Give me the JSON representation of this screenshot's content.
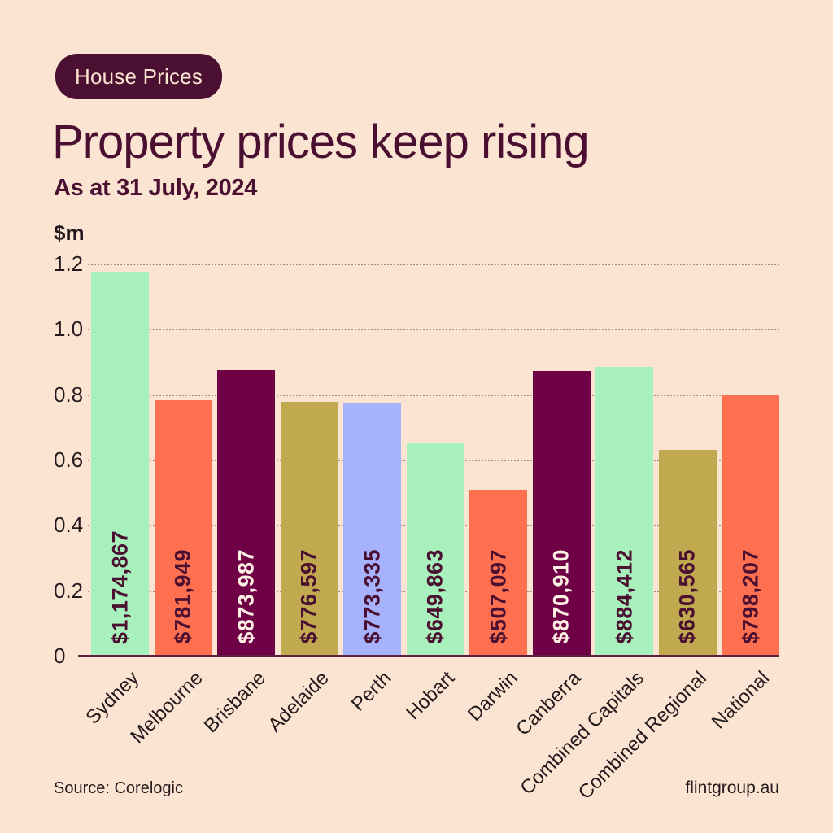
{
  "badge": {
    "label": "House Prices"
  },
  "header": {
    "title": "Property prices keep rising",
    "subtitle": "As at 31 July, 2024"
  },
  "footer": {
    "source": "Source: Corelogic",
    "brand": "flintgroup.au"
  },
  "palette": {
    "background": "#fce4d2",
    "plum_dark": "#4a0f31",
    "plum_bar": "#6f0046",
    "green": "#a9f1bc",
    "coral": "#fe7050",
    "olive": "#c1a94f",
    "lavender": "#a6b3fc",
    "ink": "#241a1d",
    "cream": "#fdf0e3",
    "axis": "#5c2143"
  },
  "chart_data": {
    "type": "bar",
    "title": "Property prices keep rising",
    "subtitle": "As at 31 July, 2024",
    "ylabel": "$m",
    "ylim": [
      0,
      1.2
    ],
    "yticks": [
      0,
      0.2,
      0.4,
      0.6,
      0.8,
      1.0,
      1.2
    ],
    "ytick_labels": [
      "0",
      "0.2",
      "0.4",
      "0.6",
      "0.8",
      "1.0",
      "1.2"
    ],
    "grid": "horizontal dotted",
    "legend": "none",
    "categories": [
      "Sydney",
      "Melbourne",
      "Brisbane",
      "Adelaide",
      "Perth",
      "Hobart",
      "Darwin",
      "Canberra",
      "Combined Capitals",
      "Combined Regional",
      "National"
    ],
    "values_millions": [
      1.174867,
      0.781949,
      0.873987,
      0.776597,
      0.773335,
      0.649863,
      0.507097,
      0.87091,
      0.884412,
      0.630565,
      0.798207
    ],
    "value_labels": [
      "$1,174,867",
      "$781,949",
      "$873,987",
      "$776,597",
      "$773,335",
      "$649,863",
      "$507,097",
      "$870,910",
      "$884,412",
      "$630,565",
      "$798,207"
    ],
    "bar_color_keys": [
      "green",
      "coral",
      "plum_bar",
      "olive",
      "lavender",
      "green",
      "coral",
      "plum_bar",
      "green",
      "olive",
      "coral"
    ],
    "source": "Source: Corelogic"
  }
}
